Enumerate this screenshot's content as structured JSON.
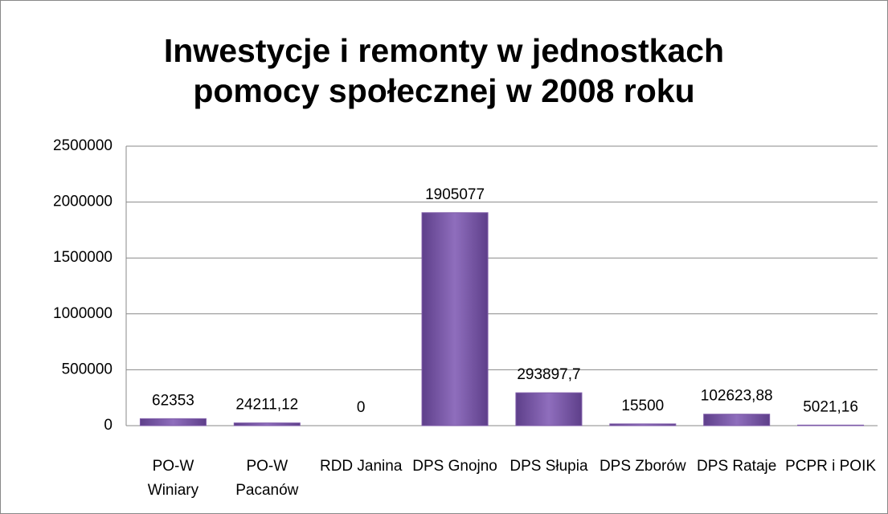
{
  "chart_data": {
    "type": "bar",
    "title": "Inwestycje i remonty w jednostkach pomocy społecznej w 2008 roku",
    "categories": [
      "PO-W Winiary",
      "PO-W Pacanów",
      "RDD Janina",
      "DPS Gnojno",
      "DPS Słupia",
      "DPS Zborów",
      "DPS Rataje",
      "PCPR i POIK"
    ],
    "values": [
      62353,
      24211.12,
      0,
      1905077,
      293897.7,
      15500,
      102623.88,
      5021.16
    ],
    "value_labels": [
      "62353",
      "24211,12",
      "0",
      "1905077",
      "293897,7",
      "15500",
      "102623,88",
      "5021,16"
    ],
    "color": "#7e5ba8",
    "ylim": [
      0,
      2500000
    ],
    "yticks": [
      0,
      500000,
      1000000,
      1500000,
      2000000,
      2500000
    ],
    "grid": true
  }
}
